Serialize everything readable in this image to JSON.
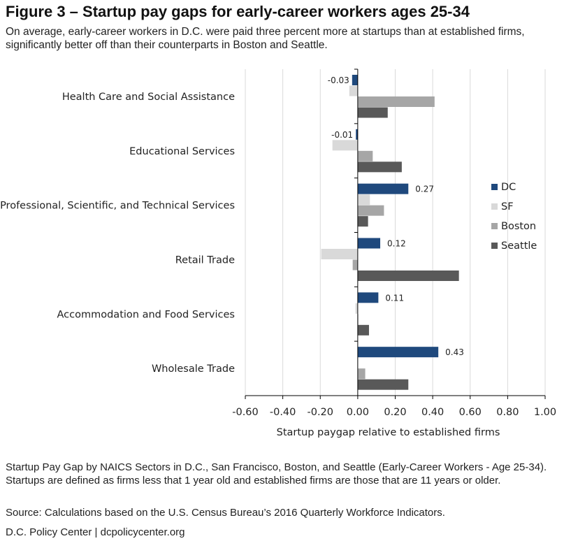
{
  "title": "Figure 3 – Startup pay gaps for early-career workers ages 25-34",
  "subtitle": "On average, early-career workers in D.C. were paid three percent more at startups than at established firms, significantly better off than their counterparts in Boston and Seattle.",
  "chart_data": {
    "type": "bar",
    "orientation": "horizontal",
    "categories": [
      "Health Care and Social Assistance",
      "Educational Services",
      "Professional, Scientific, and Technical Services",
      "Retail Trade",
      "Accommodation and Food Services",
      "Wholesale Trade"
    ],
    "series": [
      {
        "name": "DC",
        "color": "#1f497d",
        "values": [
          -0.03,
          -0.01,
          0.27,
          0.12,
          0.11,
          0.43
        ],
        "data_labels": [
          "-0.03",
          "-0.01",
          "0.27",
          "0.12",
          "0.11",
          "0.43"
        ]
      },
      {
        "name": "SF",
        "color": "#d9d9d9",
        "values": [
          -0.045,
          -0.135,
          0.065,
          -0.195,
          -0.012,
          -0.002
        ]
      },
      {
        "name": "Boston",
        "color": "#a6a6a6",
        "values": [
          0.41,
          0.08,
          0.14,
          -0.027,
          0.003,
          0.04
        ]
      },
      {
        "name": "Seattle",
        "color": "#595959",
        "values": [
          0.16,
          0.235,
          0.055,
          0.54,
          0.06,
          0.27
        ]
      }
    ],
    "xlabel": "Startup paygap relative to established firms",
    "xlim": [
      -0.6,
      1.0
    ],
    "xticks": [
      "-0.60",
      "-0.40",
      "-0.20",
      "0.00",
      "0.20",
      "0.40",
      "0.60",
      "0.80",
      "1.00"
    ],
    "grid": true,
    "legend": "right"
  },
  "notes": [
    "Startup Pay Gap by NAICS Sectors in D.C., San Francisco, Boston, and Seattle (Early-Career Workers - Age 25-34). Startups are defined as firms less that 1 year old and established firms are those that are 11 years or older.",
    "Source: Calculations based on the U.S. Census Bureau’s 2016 Quarterly Workforce Indicators.",
    "D.C. Policy Center  |  dcpolicycenter.org"
  ]
}
